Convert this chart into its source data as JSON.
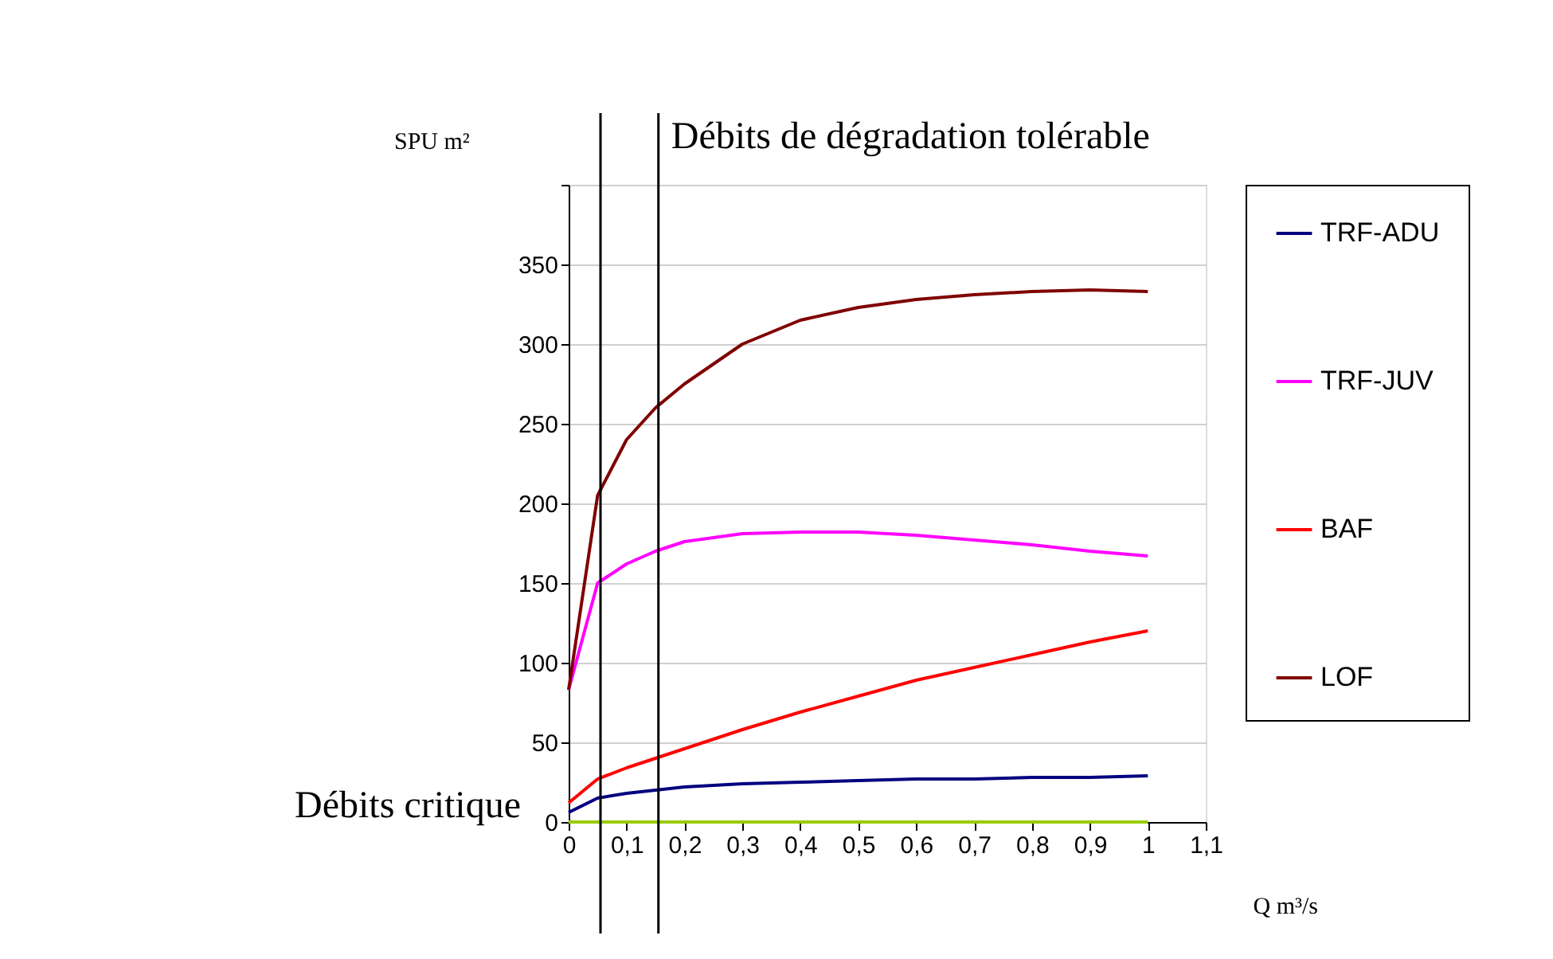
{
  "chart_data": {
    "type": "line",
    "xlabel": "Q m³/s",
    "ylabel": "SPU m²",
    "x": [
      0,
      0.05,
      0.1,
      0.15,
      0.2,
      0.3,
      0.4,
      0.5,
      0.6,
      0.7,
      0.8,
      0.9,
      1
    ],
    "series": [
      {
        "name": "TRF-ADU",
        "color": "#000080",
        "values": [
          6,
          15,
          18,
          20,
          22,
          24,
          25,
          26,
          27,
          27,
          28,
          28,
          29
        ]
      },
      {
        "name": "TRF-JUV",
        "color": "#ff00ff",
        "values": [
          83,
          150,
          162,
          170,
          176,
          181,
          182,
          182,
          180,
          177,
          174,
          170,
          167
        ]
      },
      {
        "name": "BAF",
        "color": "#ff0000",
        "values": [
          12,
          27,
          34,
          40,
          46,
          58,
          69,
          79,
          89,
          97,
          105,
          113,
          120
        ]
      },
      {
        "name": "LOF",
        "color": "#800000",
        "values": [
          83,
          205,
          240,
          260,
          275,
          300,
          315,
          323,
          328,
          331,
          333,
          334,
          333
        ]
      },
      {
        "color": "#99cc00",
        "values": [
          0,
          0,
          0,
          0,
          0,
          0,
          0,
          0,
          0,
          0,
          0,
          0,
          0
        ]
      }
    ],
    "xlim": [
      0,
      1.1
    ],
    "xticks": [
      0,
      {
        "value": 0.1,
        "label": "0,1"
      },
      {
        "value": 0.2,
        "label": "0,2"
      },
      {
        "value": 0.3,
        "label": "0,3"
      },
      {
        "value": 0.4,
        "label": "0,4"
      },
      {
        "value": 0.5,
        "label": "0,5"
      },
      {
        "value": 0.6,
        "label": "0,6"
      },
      {
        "value": 0.7,
        "label": "0,7"
      },
      {
        "value": 0.8,
        "label": "0,8"
      },
      {
        "value": 0.9,
        "label": "0,9"
      },
      1,
      {
        "value": 1.1,
        "label": "1,1"
      }
    ],
    "ylim": [
      0,
      400
    ],
    "yticks": [
      0,
      50,
      100,
      150,
      200,
      250,
      300,
      350,
      {
        "value": 400,
        "label": null
      }
    ],
    "ref_lines": [
      {
        "axis": "x",
        "value": 0.055,
        "label": "Débits critique",
        "color": "#000000"
      },
      {
        "axis": "x",
        "value": 0.155,
        "label": "Débits de dégradation tolérable",
        "color": "#000000"
      }
    ],
    "grid": "y",
    "legend": "right",
    "marker": "none",
    "line_style": "solid"
  }
}
